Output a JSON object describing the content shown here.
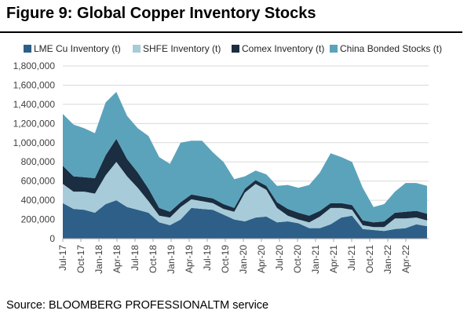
{
  "figure": {
    "title": "Figure 9: Global Copper Inventory Stocks",
    "source": "Source: BLOOMBERG PROFESSIONALTM service"
  },
  "colors": {
    "lme": "#2e5f88",
    "shfe": "#a7cbd8",
    "comex": "#1b2d40",
    "bonded": "#5ba3bb",
    "grid": "#d9d9d9",
    "axis": "#a6a6a6"
  },
  "chart_data": {
    "type": "area",
    "stacked": true,
    "legend_position": "top",
    "grid": true,
    "ylim": [
      0,
      1800000
    ],
    "y_ticks": [
      0,
      200000,
      400000,
      600000,
      800000,
      1000000,
      1200000,
      1400000,
      1600000,
      1800000
    ],
    "y_tick_labels": [
      "0",
      "200,000",
      "400,000",
      "600,000",
      "800,000",
      "1,000,000",
      "1,200,000",
      "1,400,000",
      "1,600,000",
      "1,800,000"
    ],
    "x_tick_labels": [
      "Jul-17",
      "Oct-17",
      "Jan-18",
      "Apr-18",
      "Jul-18",
      "Oct-18",
      "Jan-19",
      "Apr-19",
      "Jul-19",
      "Oct-19",
      "Jan-20",
      "Apr-20",
      "Jul-20",
      "Oct-20",
      "Jan-21",
      "Apr-21",
      "Jul-21",
      "Oct-21",
      "Jan-22",
      "Apr-22"
    ],
    "x": [
      "Jul-17",
      "Sep-17",
      "Nov-17",
      "Jan-18",
      "Mar-18",
      "Apr-18",
      "May-18",
      "Jul-18",
      "Sep-18",
      "Nov-18",
      "Jan-19",
      "Mar-19",
      "May-19",
      "Jul-19",
      "Sep-19",
      "Nov-19",
      "Jan-20",
      "Mar-20",
      "Apr-20",
      "May-20",
      "Jul-20",
      "Sep-20",
      "Nov-20",
      "Jan-21",
      "Mar-21",
      "May-21",
      "Jul-21",
      "Aug-21",
      "Oct-21",
      "Nov-21",
      "Jan-22",
      "Mar-22",
      "Apr-22",
      "May-22",
      "Jun-22"
    ],
    "series": [
      {
        "name": "LME Cu Inventory (t)",
        "color_key": "lme",
        "values": [
          370000,
          310000,
          300000,
          270000,
          360000,
          400000,
          330000,
          300000,
          270000,
          170000,
          140000,
          200000,
          320000,
          310000,
          300000,
          250000,
          200000,
          180000,
          220000,
          230000,
          170000,
          180000,
          160000,
          110000,
          110000,
          150000,
          220000,
          240000,
          100000,
          90000,
          80000,
          100000,
          110000,
          150000,
          130000
        ]
      },
      {
        "name": "SHFE Inventory (t)",
        "color_key": "shfe",
        "values": [
          200000,
          180000,
          190000,
          200000,
          300000,
          400000,
          320000,
          230000,
          120000,
          70000,
          80000,
          130000,
          90000,
          80000,
          70000,
          60000,
          80000,
          300000,
          350000,
          280000,
          150000,
          60000,
          40000,
          60000,
          120000,
          170000,
          100000,
          60000,
          40000,
          30000,
          40000,
          110000,
          100000,
          70000,
          60000
        ]
      },
      {
        "name": "Comex Inventory (t)",
        "color_key": "comex",
        "values": [
          190000,
          160000,
          150000,
          160000,
          210000,
          240000,
          180000,
          160000,
          130000,
          80000,
          60000,
          50000,
          50000,
          50000,
          50000,
          50000,
          40000,
          40000,
          40000,
          40000,
          60000,
          70000,
          70000,
          70000,
          60000,
          50000,
          50000,
          50000,
          50000,
          50000,
          60000,
          60000,
          70000,
          70000,
          70000
        ]
      },
      {
        "name": "China Bonded Stocks (t)",
        "color_key": "bonded",
        "values": [
          540000,
          540000,
          510000,
          470000,
          550000,
          490000,
          450000,
          460000,
          550000,
          530000,
          500000,
          620000,
          560000,
          580000,
          480000,
          440000,
          300000,
          130000,
          100000,
          120000,
          170000,
          250000,
          260000,
          320000,
          400000,
          520000,
          480000,
          450000,
          340000,
          160000,
          180000,
          220000,
          300000,
          290000,
          290000
        ]
      }
    ]
  }
}
